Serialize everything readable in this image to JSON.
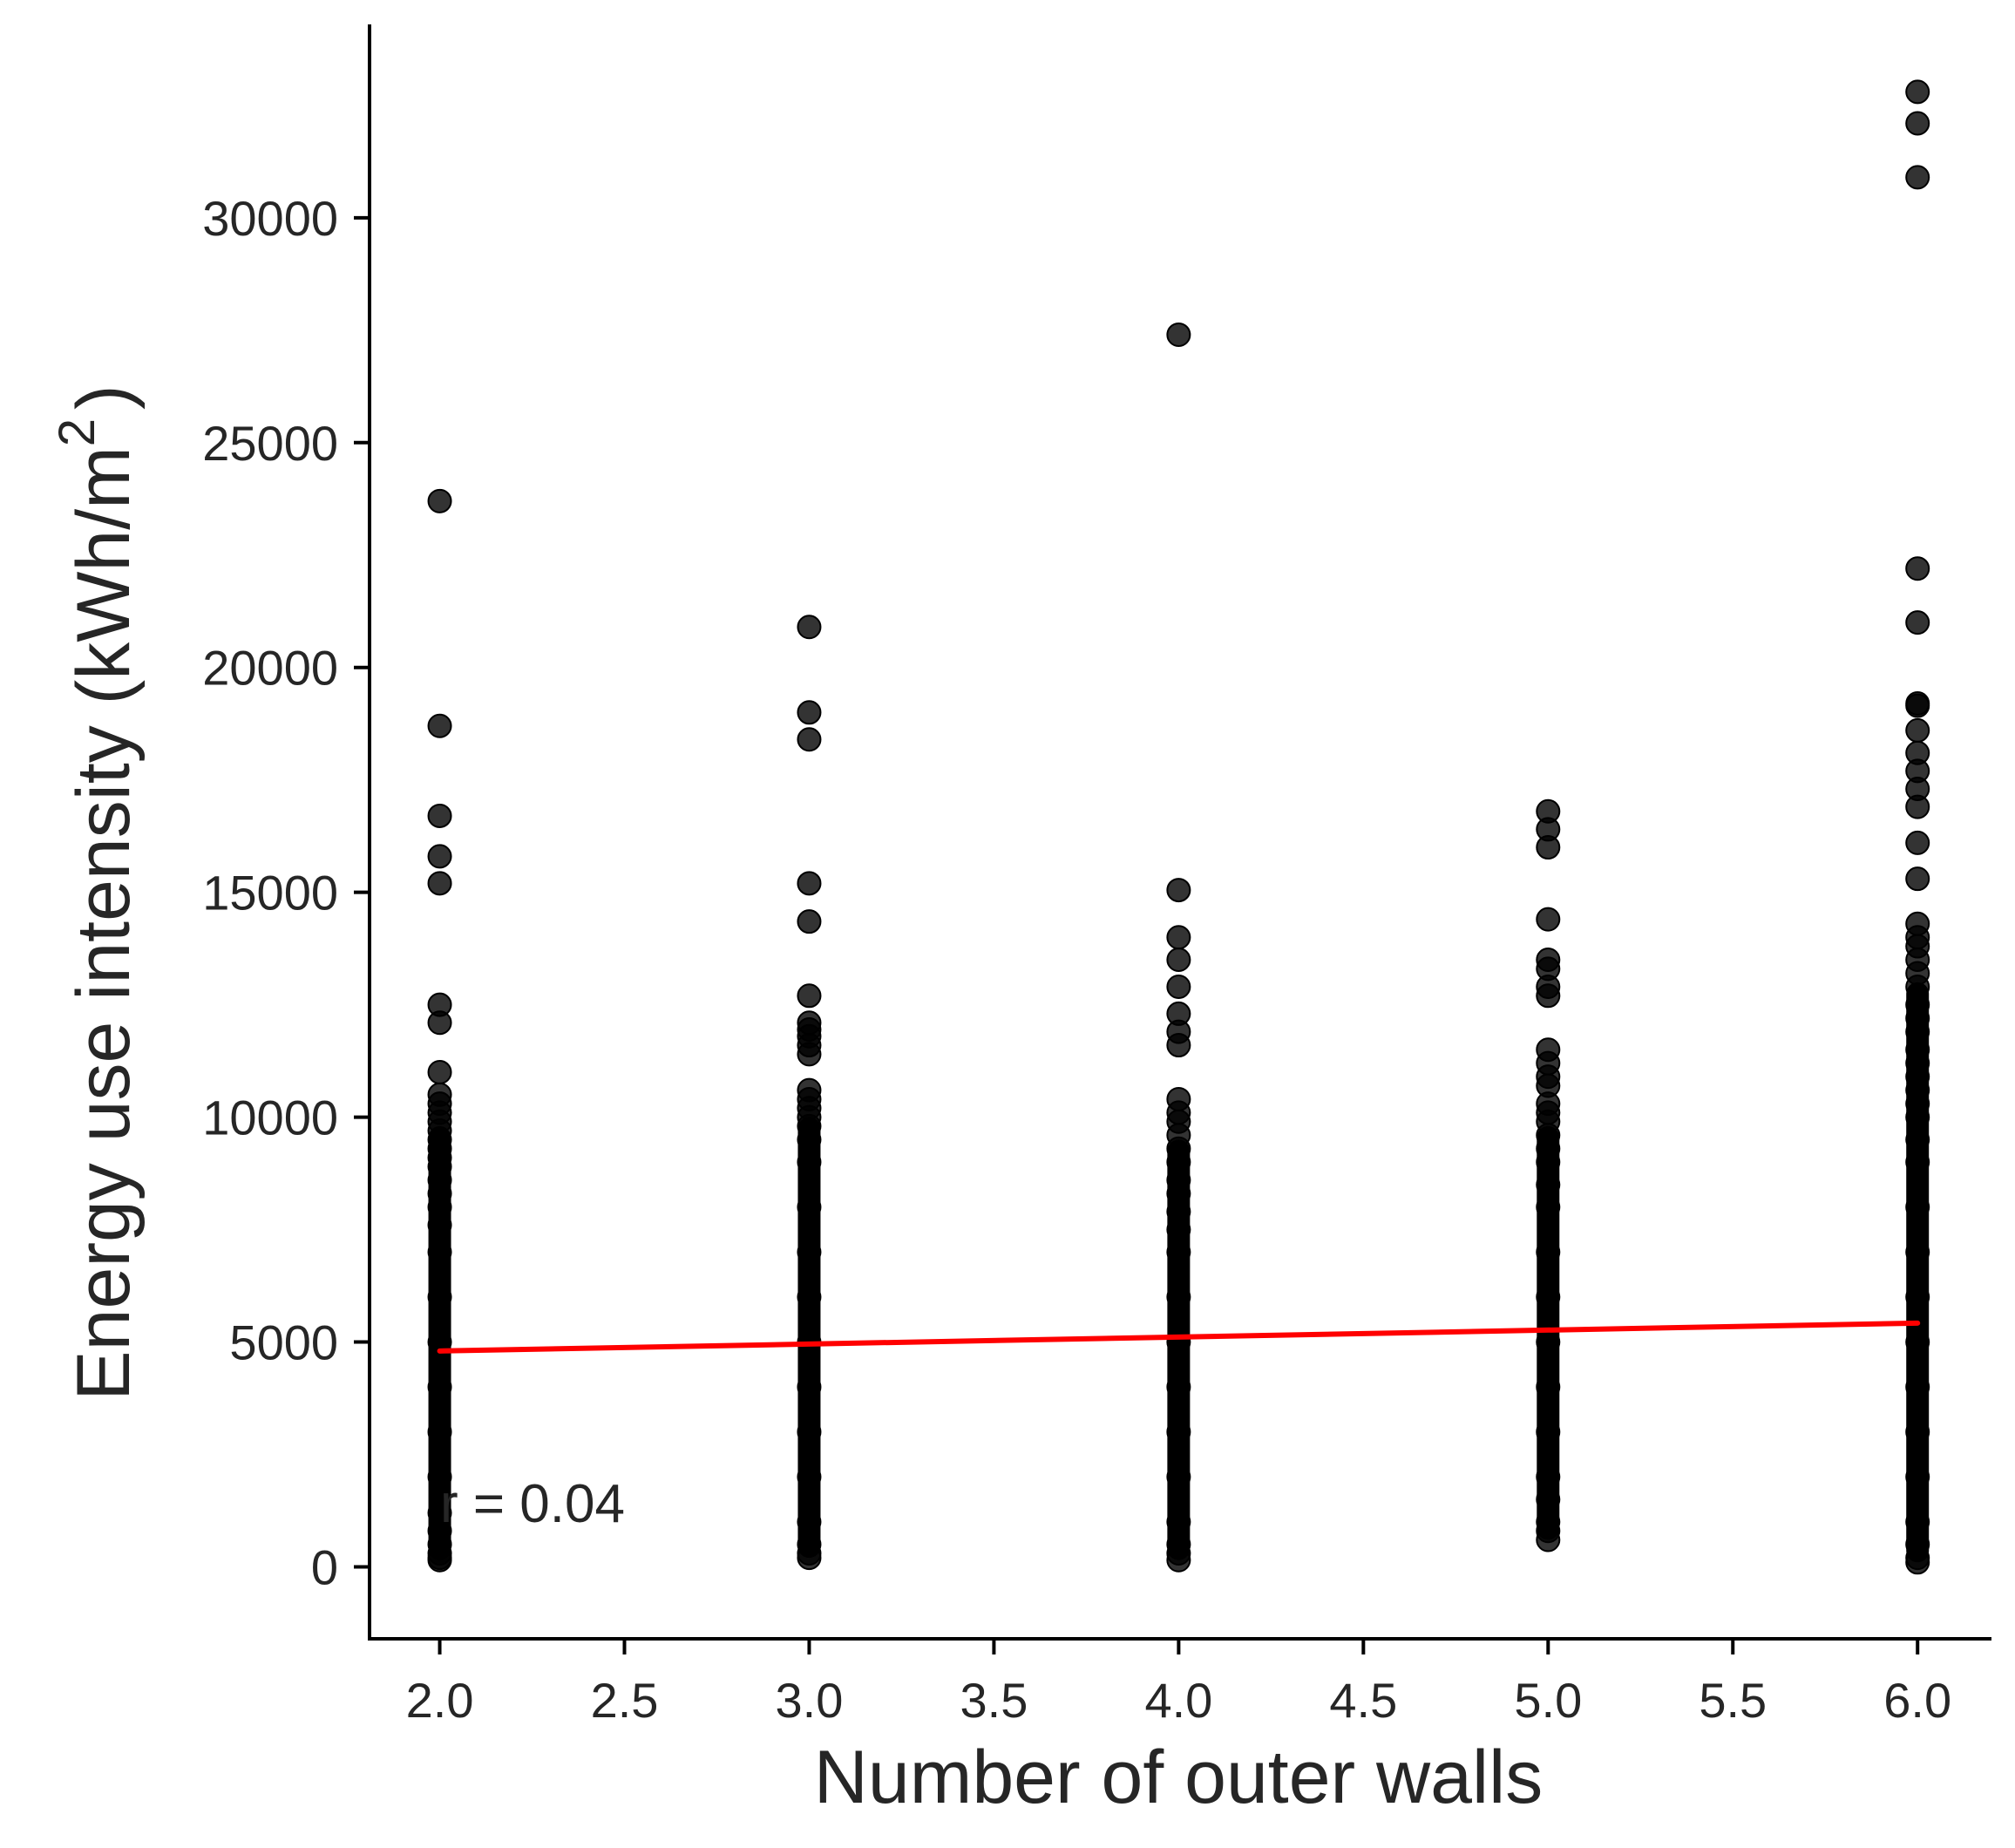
{
  "chart_data": {
    "type": "scatter",
    "xlabel": "Number of outer walls",
    "ylabel_main": "Energy use intensity (kWh/m",
    "ylabel_sup": "2",
    "ylabel_end": ")",
    "xlim": [
      1.81,
      6.2
    ],
    "ylim": [
      -1600,
      34300
    ],
    "xticks": [
      2.0,
      2.5,
      3.0,
      3.5,
      4.0,
      4.5,
      5.0,
      5.5,
      6.0
    ],
    "xtick_labels": [
      "2.0",
      "2.5",
      "3.0",
      "3.5",
      "4.0",
      "4.5",
      "5.0",
      "5.5",
      "6.0"
    ],
    "yticks": [
      0,
      5000,
      10000,
      15000,
      20000,
      25000,
      30000
    ],
    "ytick_labels": [
      "0",
      "5000",
      "10000",
      "15000",
      "20000",
      "25000",
      "30000"
    ],
    "grid": false,
    "point_color": "#000000",
    "line_color": "#ff0000",
    "annotation": "r = 0.04",
    "series": [
      {
        "x": 2,
        "dense_range": [
          150,
          9800
        ],
        "values": [
          23700,
          18700,
          16700,
          15800,
          15200,
          12500,
          12100,
          11000,
          10500,
          10300,
          10100,
          9900,
          9700,
          9500,
          9300,
          9100,
          8900,
          8600,
          8300,
          8000,
          7600,
          7000,
          6000,
          5000,
          4000,
          3000,
          2000,
          1200,
          800,
          500,
          300,
          200,
          150
        ]
      },
      {
        "x": 3,
        "dense_range": [
          200,
          10000
        ],
        "values": [
          20900,
          19000,
          18400,
          15200,
          14350,
          12700,
          12100,
          11950,
          11800,
          11600,
          11400,
          10600,
          10400,
          10200,
          10000,
          9800,
          9500,
          9000,
          8000,
          7000,
          6000,
          5000,
          4000,
          3000,
          2000,
          1000,
          500,
          300,
          200
        ]
      },
      {
        "x": 4,
        "dense_range": [
          150,
          9500
        ],
        "values": [
          27400,
          15050,
          14000,
          13500,
          12900,
          12300,
          11900,
          11600,
          10400,
          10100,
          9900,
          9600,
          9300,
          9000,
          8600,
          8300,
          7900,
          7500,
          7000,
          6000,
          5000,
          4000,
          3000,
          2000,
          1000,
          500,
          300,
          150
        ]
      },
      {
        "x": 5,
        "dense_range": [
          600,
          9800
        ],
        "values": [
          16800,
          16400,
          16000,
          14400,
          13500,
          13300,
          12900,
          12700,
          11500,
          11200,
          10900,
          10700,
          10300,
          10100,
          9900,
          9600,
          9300,
          9000,
          8500,
          8000,
          7000,
          6000,
          5000,
          4000,
          3000,
          2000,
          1500,
          1000,
          800,
          600
        ]
      },
      {
        "x": 6,
        "dense_range": [
          100,
          13000
        ],
        "values": [
          32800,
          32100,
          30900,
          22200,
          21000,
          19200,
          19150,
          18600,
          18100,
          17700,
          17300,
          16900,
          16100,
          15300,
          14300,
          14000,
          13800,
          13500,
          13200,
          12900,
          12500,
          12200,
          11900,
          11500,
          11200,
          10900,
          10600,
          10300,
          10000,
          9500,
          9000,
          8000,
          7000,
          6000,
          5000,
          4000,
          3000,
          2000,
          1000,
          500,
          200,
          100
        ]
      }
    ],
    "regression": {
      "x": [
        2,
        6
      ],
      "y": [
        4800,
        5420
      ]
    }
  }
}
